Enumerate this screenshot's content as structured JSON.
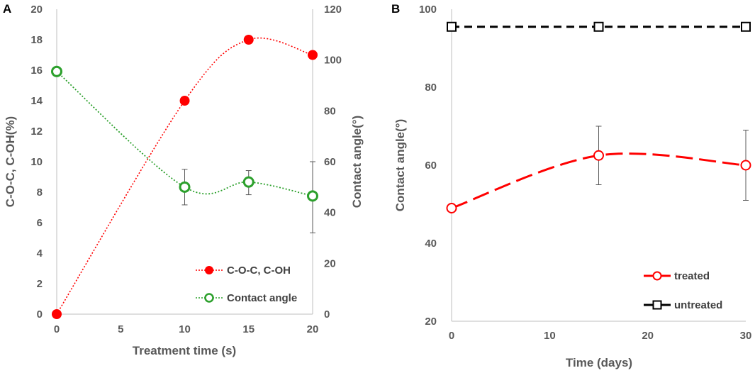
{
  "chart_data": [
    {
      "panel": "A",
      "type": "line",
      "xlabel": "Treatment time (s)",
      "ylabel": "C-O-C, C-OH(%)",
      "y2label": "Contact angle(°)",
      "xlim": [
        0,
        20
      ],
      "xticks": [
        0,
        5,
        10,
        15,
        20
      ],
      "ylim": [
        0,
        20
      ],
      "yticks": [
        0,
        2,
        4,
        6,
        8,
        10,
        12,
        14,
        16,
        18,
        20
      ],
      "y2lim": [
        0,
        120
      ],
      "y2ticks": [
        0,
        20,
        40,
        60,
        80,
        100,
        120
      ],
      "series": [
        {
          "name": "C-O-C, C-OH",
          "axis": "left",
          "color": "#ff0000",
          "marker": "filled-circle",
          "line": "dotted",
          "x": [
            0,
            10,
            15,
            20
          ],
          "y": [
            0,
            14,
            18,
            17
          ]
        },
        {
          "name": "Contact angle",
          "axis": "right",
          "color": "#2ca02c",
          "marker": "open-circle",
          "line": "dotted",
          "x": [
            0,
            10,
            15,
            20
          ],
          "y": [
            95.5,
            50,
            52,
            46.5
          ],
          "err_low": [
            0,
            43,
            47,
            32
          ],
          "err_high": [
            0,
            57,
            56.5,
            60
          ]
        }
      ],
      "legend": "bottom-right"
    },
    {
      "panel": "B",
      "type": "line",
      "xlabel": "Time (days)",
      "ylabel": "Contact angle(°)",
      "xlim": [
        0,
        30
      ],
      "xticks": [
        0,
        10,
        20,
        30
      ],
      "ylim": [
        20,
        100
      ],
      "yticks": [
        20,
        40,
        60,
        80,
        100
      ],
      "series": [
        {
          "name": "treated",
          "color": "#ff0000",
          "marker": "open-circle",
          "line": "long-dash",
          "x": [
            0,
            15,
            30
          ],
          "y": [
            49,
            62.5,
            60
          ],
          "err_low": [
            49,
            55,
            51
          ],
          "err_high": [
            49,
            70,
            69
          ]
        },
        {
          "name": "untreated",
          "color": "#000000",
          "marker": "open-square",
          "line": "dash",
          "x": [
            0,
            15,
            30
          ],
          "y": [
            95.5,
            95.5,
            95.5
          ]
        }
      ],
      "legend": "bottom-right"
    }
  ]
}
